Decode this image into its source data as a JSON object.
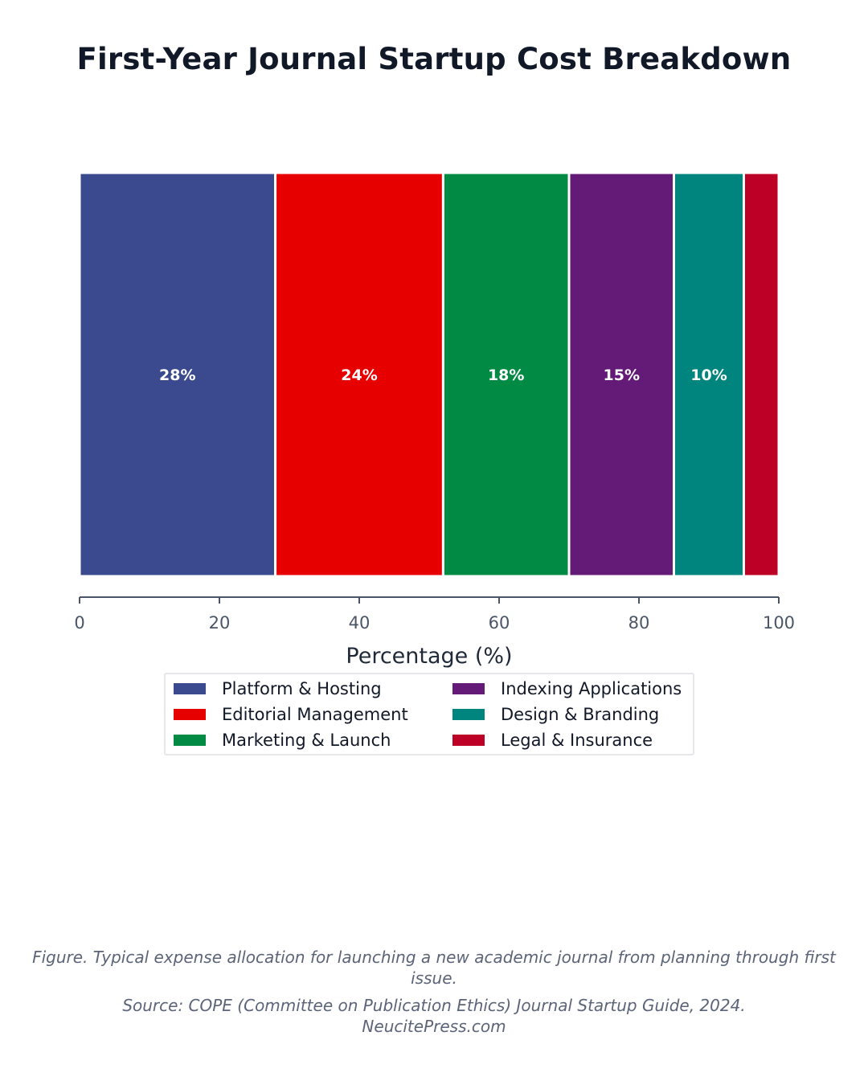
{
  "title": "First-Year Journal Startup Cost Breakdown",
  "chart_data": {
    "type": "bar",
    "orientation": "horizontal",
    "stacked": true,
    "title": "First-Year Journal Startup Cost Breakdown",
    "xlabel": "Percentage (%)",
    "ylabel": "",
    "xlim": [
      0,
      100
    ],
    "xticks": [
      0,
      20,
      40,
      60,
      80,
      100
    ],
    "grid": false,
    "legend_position": "bottom",
    "series": [
      {
        "name": "Platform & Hosting",
        "value": 28,
        "label": "28%",
        "color": "#3b4a8f"
      },
      {
        "name": "Editorial Management",
        "value": 24,
        "label": "24%",
        "color": "#e60000"
      },
      {
        "name": "Marketing & Launch",
        "value": 18,
        "label": "18%",
        "color": "#008a44"
      },
      {
        "name": "Indexing Applications",
        "value": 15,
        "label": "15%",
        "color": "#641a77"
      },
      {
        "name": "Design & Branding",
        "value": 10,
        "label": "10%",
        "color": "#00847e"
      },
      {
        "name": "Legal & Insurance",
        "value": 5,
        "label": "",
        "color": "#bd0026"
      }
    ]
  },
  "caption": {
    "line1": "Figure. Typical expense allocation for launching a new academic journal from planning through first issue.",
    "line2": "Source: COPE (Committee on Publication Ethics) Journal Startup Guide, 2024.",
    "line3": "NeucitePress.com"
  }
}
